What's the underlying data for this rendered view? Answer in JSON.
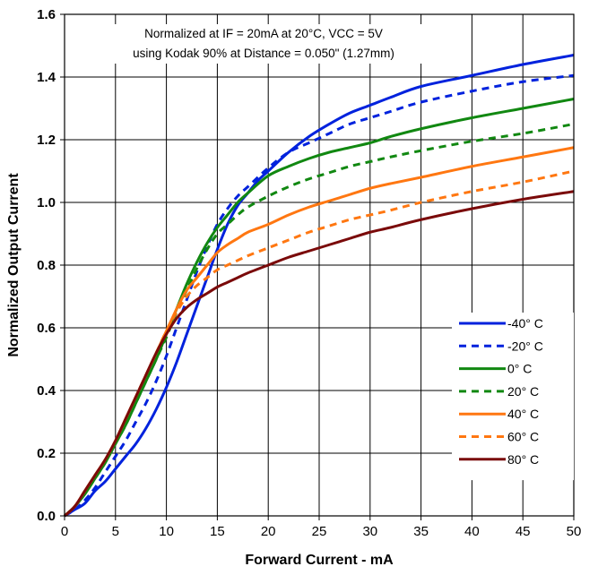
{
  "chart_data": {
    "type": "line",
    "title": "",
    "annotation": [
      "Normalized at IF  = 20mA at 20°C, VCC = 5V",
      "using Kodak 90% at Distance = 0.050\" (1.27mm)"
    ],
    "xlabel": "Forward Current - mA",
    "ylabel": "Normalized Output Current",
    "xlim": [
      0,
      50
    ],
    "ylim": [
      0,
      1.6
    ],
    "xticks": [
      "0",
      "5",
      "10",
      "15",
      "20",
      "25",
      "30",
      "35",
      "40",
      "45",
      "50"
    ],
    "yticks": [
      "0.0",
      "0.2",
      "0.4",
      "0.6",
      "0.8",
      "1.0",
      "1.2",
      "1.4",
      "1.6"
    ],
    "grid": true,
    "legend_position": "bottom-right",
    "series": [
      {
        "name": "-40° C",
        "color": "#0022dd",
        "style": "solid",
        "x": [
          0,
          1,
          2,
          3,
          4,
          5,
          6,
          7,
          8,
          9,
          10,
          11,
          12,
          13,
          14,
          15,
          16,
          17,
          18,
          19,
          20,
          22,
          24,
          26,
          28,
          30,
          32,
          35,
          40,
          45,
          50
        ],
        "y": [
          0,
          0.02,
          0.04,
          0.08,
          0.11,
          0.15,
          0.19,
          0.23,
          0.28,
          0.34,
          0.41,
          0.49,
          0.58,
          0.67,
          0.76,
          0.85,
          0.93,
          0.99,
          1.03,
          1.07,
          1.1,
          1.16,
          1.21,
          1.25,
          1.285,
          1.31,
          1.335,
          1.37,
          1.405,
          1.44,
          1.47
        ]
      },
      {
        "name": "-20° C",
        "color": "#0022dd",
        "style": "dashed",
        "x": [
          0,
          1,
          2,
          3,
          4,
          5,
          6,
          7,
          8,
          9,
          10,
          11,
          12,
          13,
          14,
          15,
          16,
          17,
          18,
          20,
          22,
          24,
          26,
          28,
          30,
          32,
          35,
          40,
          45,
          50
        ],
        "y": [
          0,
          0.02,
          0.05,
          0.09,
          0.14,
          0.19,
          0.24,
          0.3,
          0.36,
          0.43,
          0.51,
          0.6,
          0.69,
          0.78,
          0.86,
          0.93,
          0.98,
          1.02,
          1.05,
          1.11,
          1.16,
          1.19,
          1.22,
          1.25,
          1.27,
          1.29,
          1.32,
          1.355,
          1.385,
          1.405
        ]
      },
      {
        "name": "0° C",
        "color": "#118811",
        "style": "solid",
        "x": [
          0,
          1,
          2,
          3,
          4,
          5,
          6,
          7,
          8,
          9,
          10,
          11,
          12,
          13,
          14,
          15,
          16,
          17,
          18,
          20,
          22,
          24,
          26,
          28,
          30,
          32,
          35,
          40,
          45,
          50
        ],
        "y": [
          0,
          0.03,
          0.07,
          0.12,
          0.17,
          0.23,
          0.29,
          0.36,
          0.43,
          0.5,
          0.58,
          0.66,
          0.74,
          0.81,
          0.87,
          0.92,
          0.96,
          1.0,
          1.03,
          1.085,
          1.115,
          1.14,
          1.16,
          1.175,
          1.19,
          1.21,
          1.235,
          1.27,
          1.3,
          1.33
        ]
      },
      {
        "name": "20° C",
        "color": "#118811",
        "style": "dashed",
        "x": [
          0,
          1,
          2,
          3,
          4,
          5,
          6,
          7,
          8,
          9,
          10,
          11,
          12,
          13,
          14,
          15,
          16,
          17,
          18,
          20,
          22,
          24,
          26,
          28,
          30,
          32,
          35,
          40,
          45,
          50
        ],
        "y": [
          0,
          0.03,
          0.07,
          0.12,
          0.17,
          0.23,
          0.29,
          0.36,
          0.43,
          0.5,
          0.57,
          0.65,
          0.72,
          0.79,
          0.85,
          0.9,
          0.93,
          0.96,
          0.985,
          1.02,
          1.05,
          1.075,
          1.095,
          1.115,
          1.13,
          1.145,
          1.165,
          1.195,
          1.22,
          1.25
        ]
      },
      {
        "name": "40° C",
        "color": "#ff7711",
        "style": "solid",
        "x": [
          0,
          1,
          2,
          3,
          4,
          5,
          6,
          7,
          8,
          9,
          10,
          11,
          12,
          13,
          14,
          15,
          16,
          17,
          18,
          20,
          22,
          24,
          26,
          28,
          30,
          32,
          35,
          40,
          45,
          50
        ],
        "y": [
          0,
          0.03,
          0.08,
          0.13,
          0.18,
          0.24,
          0.31,
          0.38,
          0.45,
          0.52,
          0.59,
          0.66,
          0.72,
          0.76,
          0.8,
          0.84,
          0.865,
          0.885,
          0.905,
          0.93,
          0.96,
          0.985,
          1.005,
          1.025,
          1.045,
          1.06,
          1.08,
          1.115,
          1.145,
          1.175
        ]
      },
      {
        "name": "60° C",
        "color": "#ff7711",
        "style": "dashed",
        "x": [
          0,
          1,
          2,
          3,
          4,
          5,
          6,
          7,
          8,
          9,
          10,
          11,
          12,
          13,
          14,
          15,
          16,
          17,
          18,
          20,
          22,
          24,
          26,
          28,
          30,
          32,
          35,
          40,
          45,
          50
        ],
        "y": [
          0,
          0.03,
          0.08,
          0.13,
          0.18,
          0.24,
          0.31,
          0.38,
          0.45,
          0.52,
          0.59,
          0.65,
          0.7,
          0.735,
          0.76,
          0.785,
          0.8,
          0.815,
          0.83,
          0.855,
          0.88,
          0.905,
          0.925,
          0.945,
          0.96,
          0.975,
          1.0,
          1.035,
          1.065,
          1.1
        ]
      },
      {
        "name": "80° C",
        "color": "#7a0a0a",
        "style": "solid",
        "x": [
          0,
          1,
          2,
          3,
          4,
          5,
          6,
          7,
          8,
          9,
          10,
          11,
          12,
          13,
          14,
          15,
          16,
          17,
          18,
          20,
          22,
          24,
          26,
          28,
          30,
          32,
          35,
          40,
          45,
          50
        ],
        "y": [
          0,
          0.03,
          0.08,
          0.13,
          0.18,
          0.24,
          0.31,
          0.38,
          0.45,
          0.52,
          0.58,
          0.63,
          0.665,
          0.69,
          0.71,
          0.73,
          0.745,
          0.76,
          0.775,
          0.8,
          0.825,
          0.845,
          0.865,
          0.885,
          0.905,
          0.92,
          0.945,
          0.98,
          1.01,
          1.035
        ]
      }
    ]
  }
}
